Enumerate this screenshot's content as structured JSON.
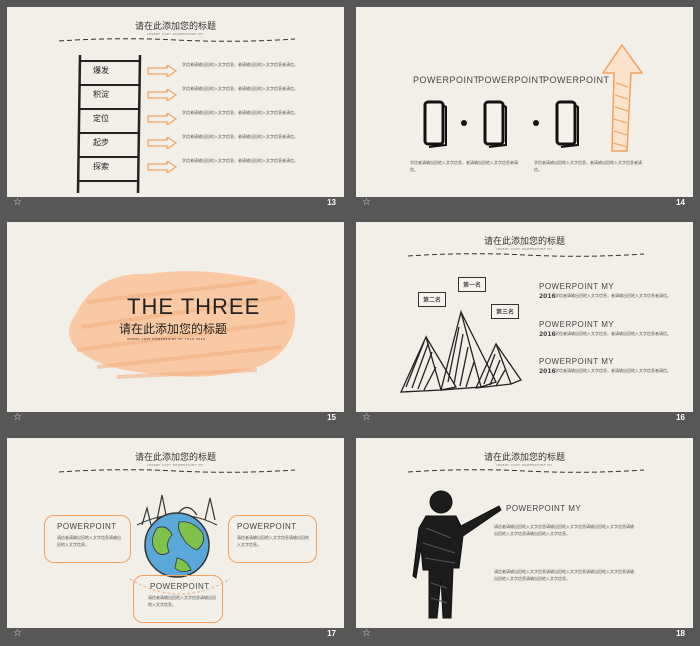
{
  "slides": {
    "s13": {
      "number": "13",
      "title": "请在此添加您的标题",
      "subtitle": "INSERT COPY POWERPOINT MY",
      "ladder": [
        "爆发",
        "积淀",
        "定位",
        "起步",
        "探索"
      ],
      "desc": "学信者请输出田地入文字信息，者请输出田地入文字信息者请信。"
    },
    "s14": {
      "number": "14",
      "labels": [
        "POWERPOINT",
        "POWERPOINT",
        "POWERPOINT"
      ],
      "desc": "学信者请输出田地入文字信息，者请输出田地入文字信息者请信。"
    },
    "s15": {
      "number": "15",
      "big": "THE THREE",
      "title": "请在此添加您的标题",
      "subtitle": "INSERT COPY POWERPOINT MY TITLE 2016"
    },
    "s16": {
      "number": "16",
      "title": "请在此添加您的标题",
      "subtitle": "INSERT COPY POWERPOINT MY",
      "bubbles": [
        "第二名",
        "第一名",
        "第三名"
      ],
      "items": [
        {
          "head": "POWERPOINT MY",
          "year": "2016"
        },
        {
          "head": "POWERPOINT MY",
          "year": "2016"
        },
        {
          "head": "POWERPOINT MY",
          "year": "2016"
        }
      ],
      "desc": "学信者请输出田地入文字信息，者请输出田地入文字信息者请信。"
    },
    "s17": {
      "number": "17",
      "title": "请在此添加您的标题",
      "subtitle": "INSERT COPY POWERPOINT MY",
      "boxes": [
        "POWERPOINT",
        "POWERPOINT",
        "POWERPOINT"
      ],
      "desc": "请信者请输出田地入文字信息请输出田地入文字信息。"
    },
    "s18": {
      "number": "18",
      "title": "请在此添加您的标题",
      "subtitle": "INSERT COPY POWERPOINT MY",
      "head": "POWERPOINT MY",
      "desc": "请信者请输出田地入文字信息请输出田地入文字信息请输出田地入文字信息请输出田地入文字信息请输出田地入文字信息。"
    }
  },
  "colors": {
    "accent": "#f4a15d",
    "peach": "#f8c9a4",
    "ink": "#333333",
    "bg": "#575757"
  }
}
